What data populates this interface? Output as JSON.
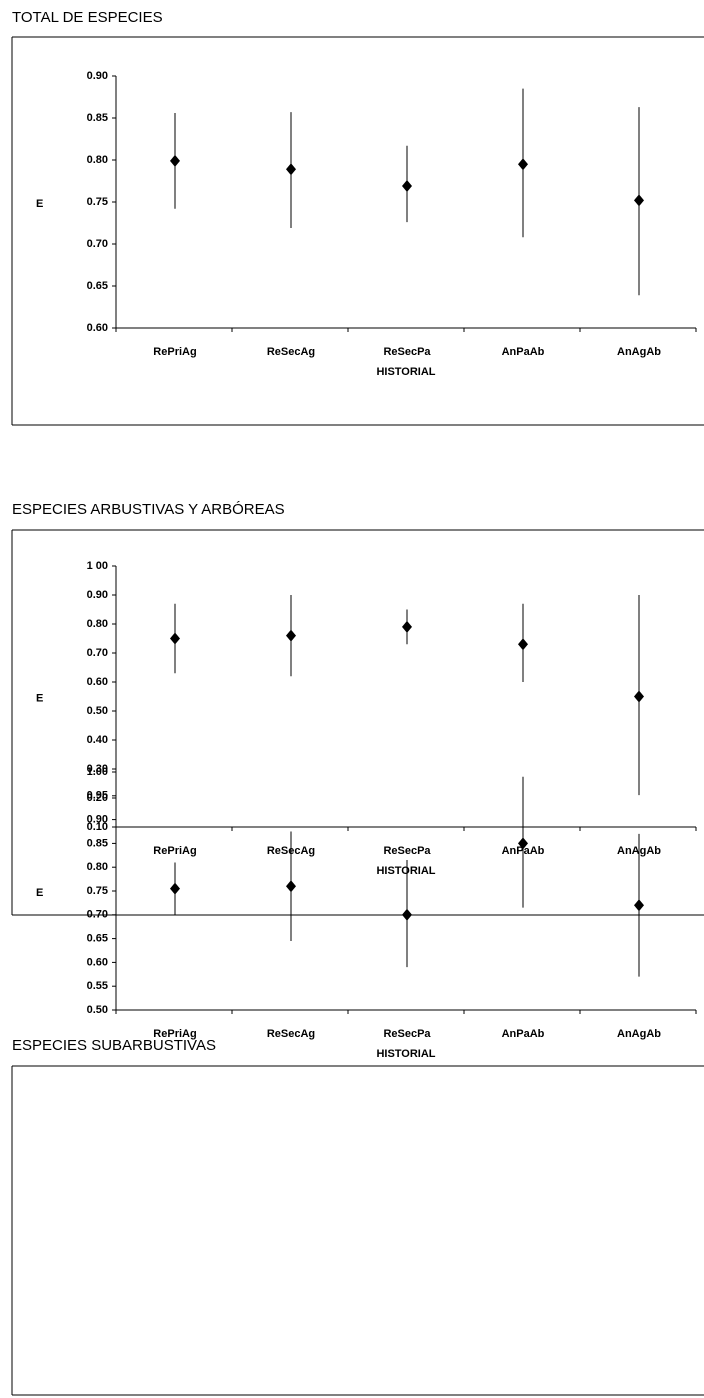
{
  "chart_data": [
    {
      "type": "errorbar",
      "title": "TOTAL DE ESPECIES",
      "xlabel": "HISTORIAL",
      "ylabel": "E",
      "categories": [
        "RePriAg",
        "ReSecAg",
        "ReSecPa",
        "AnPaAb",
        "AnAgAb"
      ],
      "values": [
        0.799,
        0.789,
        0.769,
        0.795,
        0.752
      ],
      "low": [
        0.742,
        0.719,
        0.726,
        0.708,
        0.639
      ],
      "high": [
        0.856,
        0.857,
        0.817,
        0.885,
        0.863
      ],
      "color": "#000000",
      "ylim": [
        0.6,
        0.9
      ],
      "yticks": [
        {
          "value": 0.6,
          "label": "0.60"
        },
        {
          "value": 0.65,
          "label": "0.65"
        },
        {
          "value": 0.7,
          "label": "0.70"
        },
        {
          "value": 0.75,
          "label": "0.75"
        },
        {
          "value": 0.8,
          "label": "0.80"
        },
        {
          "value": 0.85,
          "label": "0.85"
        },
        {
          "value": 0.9,
          "label": "0.90"
        }
      ]
    },
    {
      "type": "errorbar",
      "title": "ESPECIES ARBUSTIVAS Y ARBÓREAS",
      "xlabel": "HISTORIAL",
      "ylabel": "E",
      "categories": [
        "RePriAg",
        "ReSecAg",
        "ReSecPa",
        "AnPaAb",
        "AnAgAb"
      ],
      "values": [
        0.75,
        0.76,
        0.79,
        0.73,
        0.55
      ],
      "low": [
        0.63,
        0.62,
        0.73,
        0.6,
        0.21
      ],
      "high": [
        0.87,
        0.9,
        0.85,
        0.87,
        0.9
      ],
      "color": "#000000",
      "ylim": [
        0.1,
        1.0
      ],
      "yticks": [
        {
          "value": 0.1,
          "label": "0.10"
        },
        {
          "value": 0.2,
          "label": "0.20"
        },
        {
          "value": 0.3,
          "label": "0.30"
        },
        {
          "value": 0.4,
          "label": "0.40"
        },
        {
          "value": 0.5,
          "label": "0.50"
        },
        {
          "value": 0.6,
          "label": "0.60"
        },
        {
          "value": 0.7,
          "label": "0.70"
        },
        {
          "value": 0.8,
          "label": "0.80"
        },
        {
          "value": 0.9,
          "label": "0.90"
        },
        {
          "value": 1.0,
          "label": "1 00"
        }
      ]
    },
    {
      "type": "errorbar",
      "title": "ESPECIES SUBARBUSTIVAS",
      "xlabel": "HISTORIAL",
      "ylabel": "E",
      "categories": [
        "RePriAg",
        "ReSecAg",
        "ReSecPa",
        "AnPaAb",
        "AnAgAb"
      ],
      "values": [
        0.755,
        0.76,
        0.7,
        0.85,
        0.72
      ],
      "low": [
        0.7,
        0.645,
        0.59,
        0.715,
        0.57
      ],
      "high": [
        0.81,
        0.875,
        0.815,
        0.99,
        0.87
      ],
      "color": "#000000",
      "ylim": [
        0.5,
        1.0
      ],
      "yticks": [
        {
          "value": 0.5,
          "label": "0.50"
        },
        {
          "value": 0.55,
          "label": "0.55"
        },
        {
          "value": 0.6,
          "label": "0.60"
        },
        {
          "value": 0.65,
          "label": "0.65"
        },
        {
          "value": 0.7,
          "label": "0.70"
        },
        {
          "value": 0.75,
          "label": "0.75"
        },
        {
          "value": 0.8,
          "label": "0.80"
        },
        {
          "value": 0.85,
          "label": "0.85"
        },
        {
          "value": 0.9,
          "label": "0.90"
        },
        {
          "value": 0.95,
          "label": "0.95"
        },
        {
          "value": 1.0,
          "label": "1.00"
        }
      ]
    }
  ]
}
